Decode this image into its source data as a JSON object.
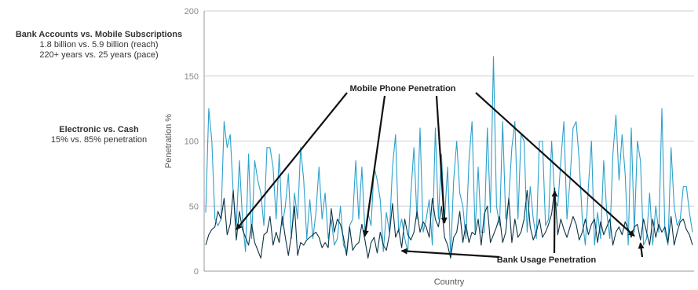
{
  "side_notes": [
    {
      "heading": "Bank Accounts vs. Mobile Subscriptions",
      "lines": [
        "1.8 billion vs. 5.9 billion (reach)",
        "220+ years vs. 25 years (pace)"
      ]
    },
    {
      "heading": "Electronic vs. Cash",
      "lines": [
        "15% vs. 85% penetration"
      ]
    }
  ],
  "colors": {
    "mobile": "#2aa0cc",
    "bank": "#0e3345",
    "grid": "#d0d0d0"
  },
  "chart_data": {
    "type": "line",
    "title": "",
    "xlabel": "Country",
    "ylabel": "Penetration %",
    "ylim": [
      0,
      200
    ],
    "yticks": [
      0,
      50,
      100,
      150,
      200
    ],
    "grid": true,
    "series": [
      {
        "key": "mobile",
        "name": "Mobile Phone Penetration",
        "values": [
          45,
          125,
          100,
          40,
          35,
          40,
          115,
          95,
          105,
          60,
          35,
          85,
          40,
          15,
          90,
          25,
          85,
          70,
          60,
          35,
          95,
          95,
          80,
          40,
          90,
          35,
          50,
          75,
          25,
          60,
          40,
          95,
          70,
          25,
          55,
          25,
          45,
          80,
          40,
          60,
          25,
          40,
          20,
          25,
          50,
          20,
          15,
          35,
          40,
          85,
          40,
          80,
          30,
          45,
          35,
          80,
          70,
          55,
          15,
          45,
          30,
          80,
          105,
          30,
          40,
          25,
          15,
          60,
          95,
          40,
          110,
          30,
          40,
          55,
          20,
          110,
          40,
          90,
          40,
          80,
          10,
          70,
          100,
          60,
          50,
          25,
          85,
          115,
          30,
          80,
          30,
          30,
          110,
          45,
          165,
          50,
          35,
          115,
          40,
          55,
          95,
          115,
          40,
          105,
          100,
          30,
          65,
          40,
          25,
          100,
          100,
          35,
          40,
          100,
          55,
          50,
          85,
          115,
          40,
          70,
          110,
          115,
          85,
          40,
          20,
          65,
          100,
          20,
          45,
          25,
          85,
          45,
          25,
          90,
          120,
          70,
          105,
          75,
          20,
          110,
          30,
          100,
          85,
          20,
          25,
          60,
          20,
          50,
          30,
          125,
          30,
          20,
          95,
          50,
          35,
          40,
          65,
          65,
          45,
          30
        ]
      },
      {
        "key": "bank",
        "name": "Bank Usage Penetration",
        "values": [
          20,
          28,
          32,
          34,
          46,
          40,
          56,
          28,
          36,
          62,
          24,
          46,
          32,
          26,
          20,
          36,
          22,
          16,
          10,
          28,
          30,
          42,
          20,
          30,
          22,
          42,
          26,
          12,
          28,
          50,
          12,
          22,
          20,
          24,
          26,
          28,
          30,
          26,
          18,
          22,
          18,
          48,
          30,
          40,
          36,
          26,
          12,
          34,
          16,
          20,
          22,
          36,
          24,
          10,
          22,
          26,
          14,
          30,
          20,
          16,
          28,
          52,
          26,
          32,
          18,
          40,
          28,
          24,
          30,
          46,
          30,
          38,
          34,
          26,
          56,
          40,
          34,
          50,
          26,
          20,
          10,
          26,
          30,
          46,
          22,
          36,
          22,
          30,
          28,
          40,
          20,
          44,
          50,
          22,
          28,
          34,
          42,
          22,
          30,
          56,
          22,
          40,
          26,
          30,
          40,
          62,
          34,
          24,
          30,
          40,
          26,
          30,
          36,
          44,
          64,
          28,
          40,
          32,
          26,
          34,
          42,
          36,
          24,
          30,
          40,
          28,
          36,
          40,
          22,
          38,
          28,
          34,
          40,
          20,
          30,
          34,
          28,
          38,
          32,
          26,
          34,
          36,
          24,
          40,
          30,
          20,
          40,
          26,
          36,
          30,
          34,
          22,
          42,
          20,
          30,
          38,
          40,
          32,
          28,
          20
        ]
      }
    ],
    "annotations": [
      {
        "text": "Mobile Phone Penetration",
        "series": "mobile"
      },
      {
        "text": "Bank Usage Penetration",
        "series": "bank"
      }
    ]
  }
}
